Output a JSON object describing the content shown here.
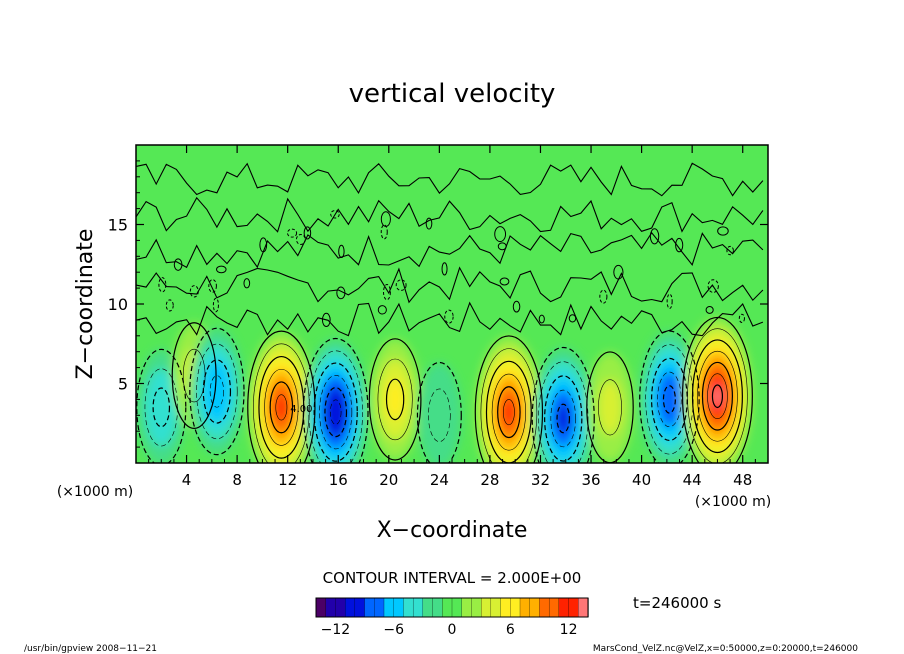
{
  "chart_data": {
    "type": "heatmap",
    "title": "vertical velocity",
    "xlabel": "X−coordinate",
    "ylabel": "Z−coordinate",
    "x_unit": "(×1000 m)",
    "y_unit": "(×1000 m)",
    "xlim": [
      0,
      50
    ],
    "ylim": [
      0,
      20
    ],
    "x_ticks": [
      4,
      8,
      12,
      16,
      20,
      24,
      28,
      32,
      36,
      40,
      44,
      48
    ],
    "y_ticks": [
      5,
      10,
      15
    ],
    "contour_interval": "CONTOUR INTERVAL = 2.000E+00",
    "contour_label": "4.00",
    "time_label": "t=246000 s",
    "colorbar": {
      "ticks": [
        -12,
        -6,
        0,
        6,
        12
      ],
      "range": [
        -14,
        14
      ]
    },
    "cells": [
      {
        "x": 2.0,
        "z": 3.5,
        "w": -5
      },
      {
        "x": 4.6,
        "z": 5.5,
        "w": 3
      },
      {
        "x": 6.4,
        "z": 4.5,
        "w": -7
      },
      {
        "x": 11.5,
        "z": 3.5,
        "w": 12
      },
      {
        "x": 15.8,
        "z": 3.2,
        "w": -11
      },
      {
        "x": 20.5,
        "z": 4.0,
        "w": 6
      },
      {
        "x": 24.0,
        "z": 3.0,
        "w": -3
      },
      {
        "x": 29.5,
        "z": 3.2,
        "w": 12
      },
      {
        "x": 33.8,
        "z": 2.8,
        "w": -10
      },
      {
        "x": 37.5,
        "z": 3.5,
        "w": 4
      },
      {
        "x": 42.2,
        "z": 4.0,
        "w": -9
      },
      {
        "x": 46.0,
        "z": 4.2,
        "w": 13
      }
    ],
    "colorscale": [
      "#4b0066",
      "#2200aa",
      "#0011dd",
      "#0066ff",
      "#00c8ff",
      "#33e0d0",
      "#44dd88",
      "#55e855",
      "#99ee44",
      "#d8f033",
      "#ffee22",
      "#ffb000",
      "#ff6a00",
      "#ff2200",
      "#ff7777"
    ]
  },
  "footer": {
    "left": "/usr/bin/gpview   2008−11−21",
    "right": "MarsCond_VelZ.nc@VelZ,x=0:50000,z=0:20000,t=246000"
  }
}
